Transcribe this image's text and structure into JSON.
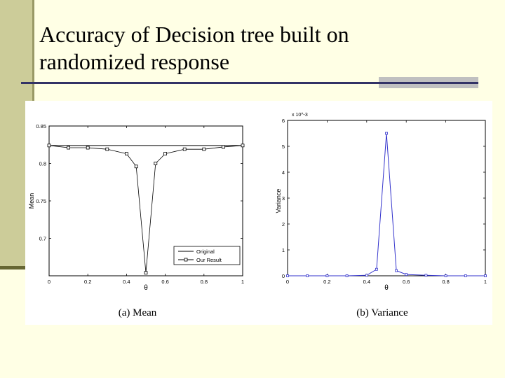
{
  "slide": {
    "title_line1": "Accuracy of Decision tree built on",
    "title_line2": "randomized response"
  },
  "colors": {
    "background": "#ffffe5",
    "accent_bar": "#cccc99",
    "rule": "#333366",
    "series_variance": "#3333cc"
  },
  "chart_data": [
    {
      "type": "line",
      "caption": "(a) Mean",
      "xlabel": "θ",
      "ylabel": "Mean",
      "xlim": [
        0,
        1
      ],
      "ylim": [
        0.65,
        0.85
      ],
      "xticks": [
        "0",
        "0.2",
        "0.4",
        "0.6",
        "0.8",
        "1"
      ],
      "yticks": [
        "0.85",
        "0.8",
        "0.75",
        "0.7"
      ],
      "legend": {
        "position": "bottom-right",
        "entries": [
          "Original",
          "Our Result"
        ]
      },
      "series": [
        {
          "name": "Original",
          "x": [
            0,
            1
          ],
          "values": [
            0.824,
            0.824
          ]
        },
        {
          "name": "Our Result",
          "x": [
            0,
            0.1,
            0.2,
            0.3,
            0.4,
            0.45,
            0.5,
            0.55,
            0.6,
            0.7,
            0.8,
            0.9,
            1.0
          ],
          "values": [
            0.824,
            0.821,
            0.821,
            0.819,
            0.813,
            0.796,
            0.654,
            0.8,
            0.813,
            0.819,
            0.819,
            0.822,
            0.824
          ]
        }
      ]
    },
    {
      "type": "line",
      "caption": "(b) Variance",
      "xlabel": "θ",
      "ylabel": "Variance",
      "scale_label": "x 10^-3",
      "xlim": [
        0,
        1
      ],
      "ylim": [
        0,
        6
      ],
      "xticks": [
        "0",
        "0.2",
        "0.4",
        "0.6",
        "0.8",
        "1"
      ],
      "yticks": [
        "0",
        "1",
        "2",
        "3",
        "4",
        "5",
        "6"
      ],
      "series": [
        {
          "name": "",
          "x": [
            0,
            0.1,
            0.2,
            0.3,
            0.4,
            0.45,
            0.5,
            0.55,
            0.6,
            0.7,
            0.8,
            0.9,
            1.0
          ],
          "values": [
            0,
            0,
            0,
            0,
            0.02,
            0.25,
            5.5,
            0.2,
            0.05,
            0.02,
            0,
            0,
            0
          ]
        }
      ]
    }
  ]
}
